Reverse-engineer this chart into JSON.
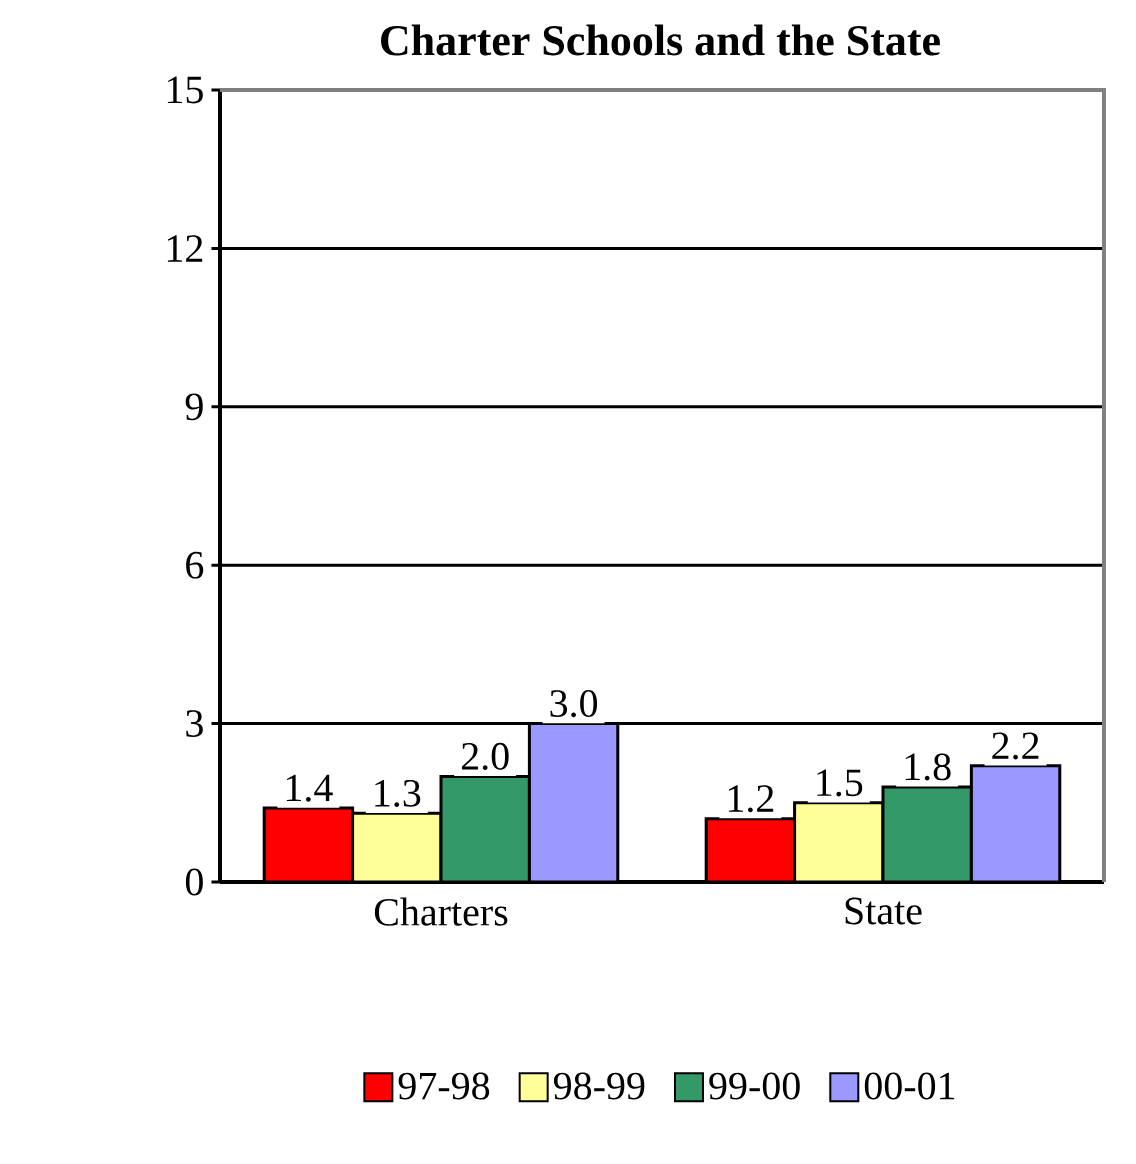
{
  "chart_data": {
    "type": "bar",
    "title": "Charter Schools and the State",
    "categories": [
      "Charters",
      "State"
    ],
    "series": [
      {
        "name": "97-98",
        "color": "#ff0000",
        "values": [
          1.4,
          1.2
        ],
        "value_labels": [
          "1.4",
          "1.2"
        ]
      },
      {
        "name": "98-99",
        "color": "#ffff99",
        "values": [
          1.3,
          1.5
        ],
        "value_labels": [
          "1.3",
          "1.5"
        ]
      },
      {
        "name": "99-00",
        "color": "#339966",
        "values": [
          2.0,
          1.8
        ],
        "value_labels": [
          "2.0",
          "1.8"
        ]
      },
      {
        "name": "00-01",
        "color": "#9999ff",
        "values": [
          3.0,
          2.2
        ],
        "value_labels": [
          "3.0",
          "2.2"
        ]
      }
    ],
    "ylim": [
      0,
      15
    ],
    "yticks": [
      0,
      3,
      6,
      9,
      12,
      15
    ],
    "grid": "y",
    "legend": "bottom"
  }
}
